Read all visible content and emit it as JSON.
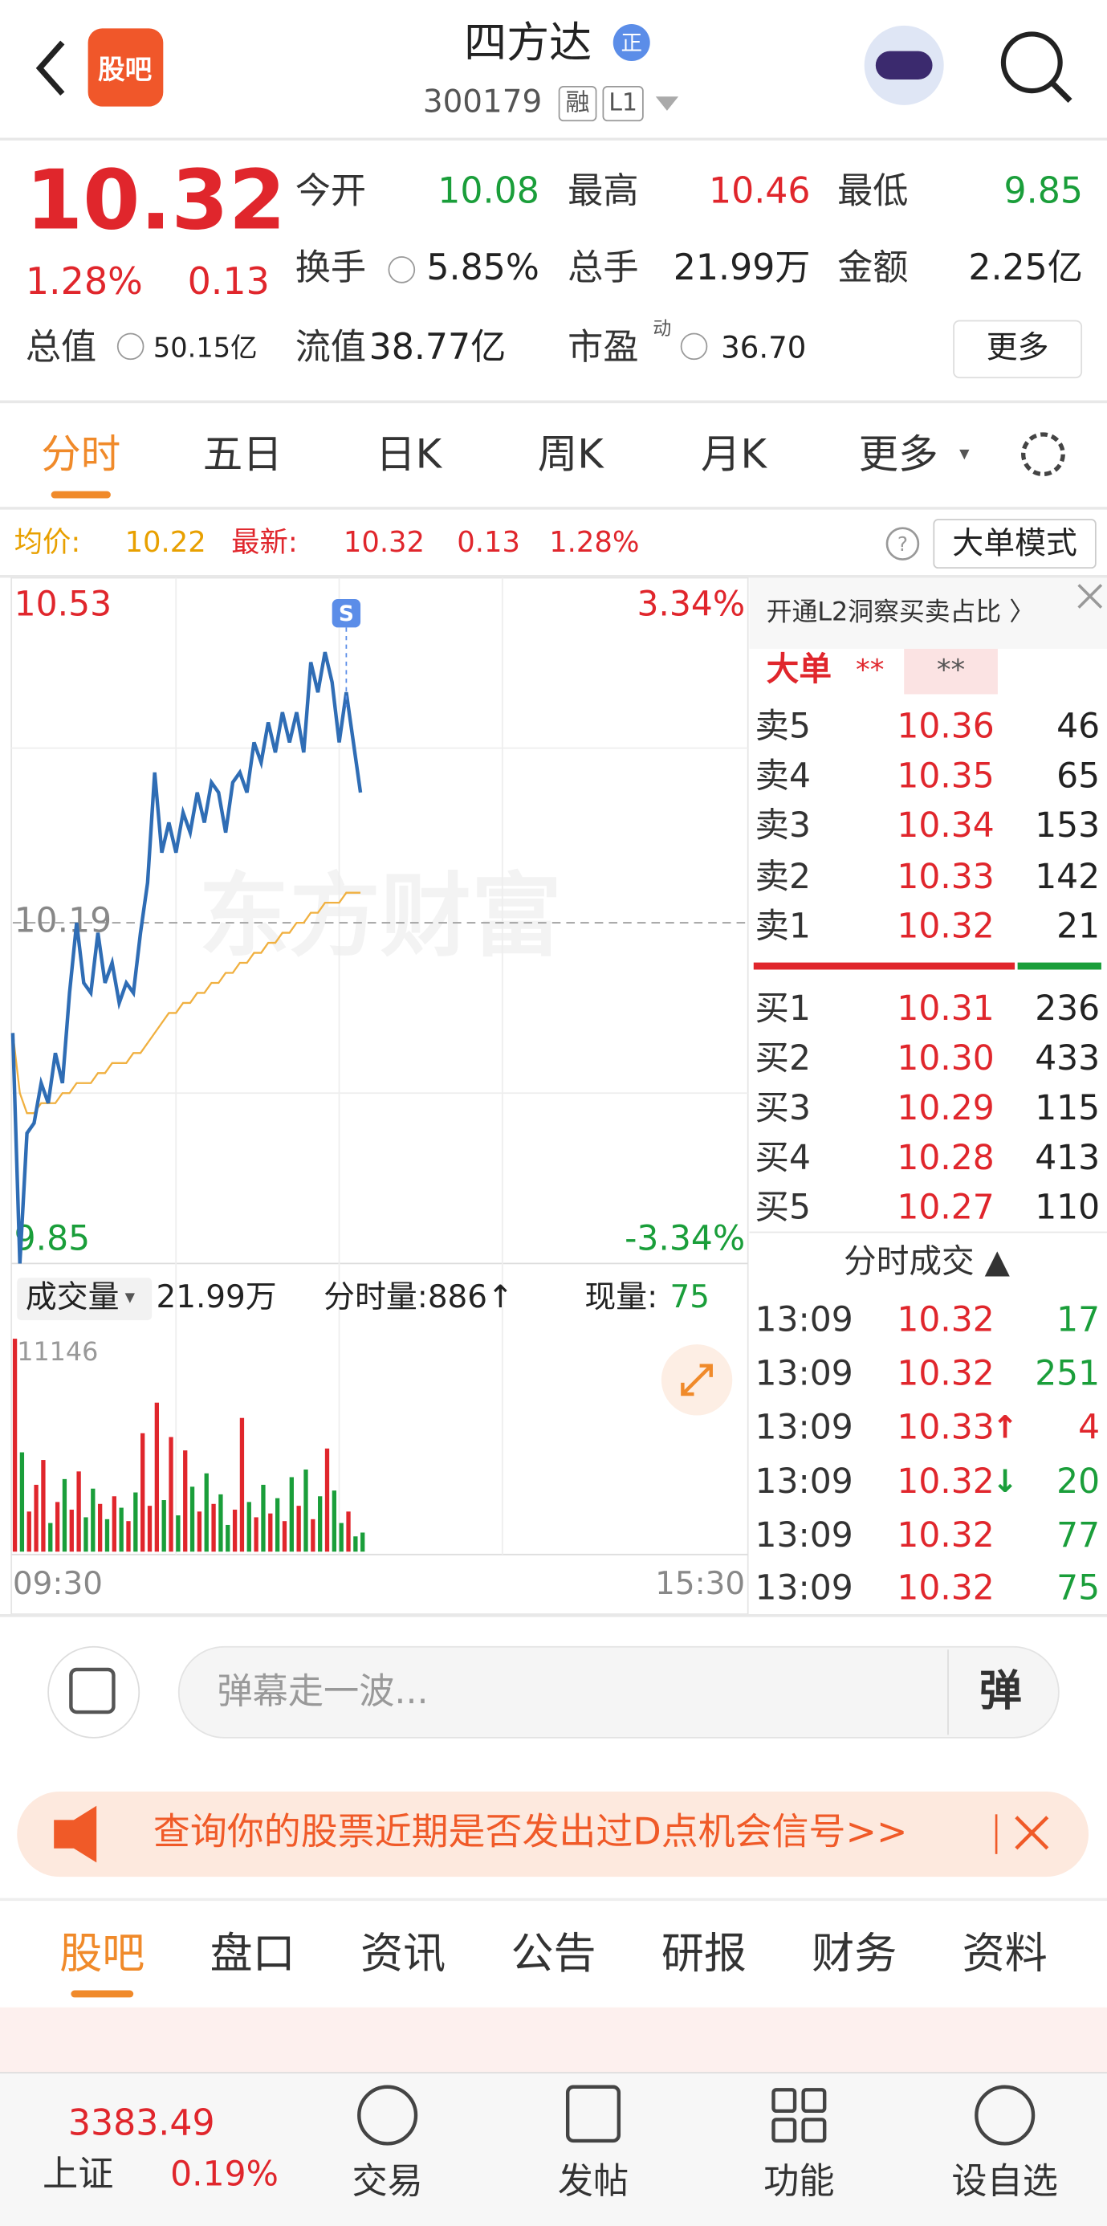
{
  "header": {
    "logo": "股吧",
    "title": "四方达",
    "badge": "正",
    "code": "300179",
    "tag_margin": "融",
    "tag_level": "L1"
  },
  "quote": {
    "price": "10.32",
    "change_pct": "1.28%",
    "change": "0.13",
    "stats": [
      {
        "label": "今开",
        "value": "10.08",
        "color": "#1a9e3a"
      },
      {
        "label": "最高",
        "value": "10.46",
        "color": "#e0262c"
      },
      {
        "label": "最低",
        "value": "9.85",
        "color": "#1a9e3a"
      },
      {
        "label": "换手",
        "value": "5.85%",
        "color": "#222222"
      },
      {
        "label": "总手",
        "value": "21.99万",
        "color": "#222222"
      },
      {
        "label": "金额",
        "value": "2.25亿",
        "color": "#222222"
      }
    ],
    "total_cap": {
      "label": "总值",
      "value": "50.15亿"
    },
    "float_cap": {
      "label": "流值",
      "value": "38.77亿"
    },
    "pe": {
      "label": "市盈",
      "sup": "动",
      "value": "36.70"
    },
    "more_button": "更多"
  },
  "tabs": [
    "分时",
    "五日",
    "日K",
    "周K",
    "月K",
    "更多"
  ],
  "info_bar": {
    "avg_label": "均价:",
    "avg": "10.22",
    "last_label": "最新:",
    "last": "10.32",
    "change": "0.13",
    "change_pct": "1.28%",
    "mode_button": "大单模式"
  },
  "chart_data": {
    "type": "line",
    "ylim": [
      9.85,
      10.53
    ],
    "yticks": [
      9.85,
      10.19,
      10.53
    ],
    "pct_labels": [
      "-3.34%",
      "3.34%"
    ],
    "x_labels": [
      "09:30",
      "15:30"
    ],
    "marker": "S",
    "watermark": "东方财富",
    "grid": true,
    "series": [
      {
        "name": "最新",
        "color": "#2f6db5",
        "values": [
          10.08,
          9.85,
          9.98,
          9.99,
          10.03,
          10.01,
          10.06,
          10.03,
          10.12,
          10.19,
          10.13,
          10.12,
          10.18,
          10.13,
          10.15,
          10.11,
          10.13,
          10.12,
          10.18,
          10.23,
          10.34,
          10.26,
          10.29,
          10.26,
          10.3,
          10.28,
          10.32,
          10.29,
          10.33,
          10.32,
          10.28,
          10.33,
          10.34,
          10.32,
          10.37,
          10.35,
          10.39,
          10.36,
          10.4,
          10.37,
          10.4,
          10.36,
          10.45,
          10.42,
          10.46,
          10.43,
          10.37,
          10.42,
          10.37,
          10.32
        ]
      },
      {
        "name": "均价",
        "color": "#f0b040",
        "values": [
          10.08,
          10.02,
          10.0,
          10.0,
          10.01,
          10.01,
          10.01,
          10.02,
          10.02,
          10.03,
          10.03,
          10.03,
          10.04,
          10.04,
          10.05,
          10.05,
          10.05,
          10.06,
          10.06,
          10.07,
          10.08,
          10.09,
          10.1,
          10.1,
          10.11,
          10.11,
          10.12,
          10.12,
          10.13,
          10.13,
          10.14,
          10.14,
          10.15,
          10.15,
          10.16,
          10.16,
          10.17,
          10.17,
          10.18,
          10.18,
          10.19,
          10.19,
          10.2,
          10.2,
          10.21,
          10.21,
          10.21,
          10.22,
          10.22,
          10.22
        ]
      }
    ],
    "volume": {
      "label": "成交量",
      "total": "21.99万",
      "period": "分时量:886↑",
      "current_label": "现量:",
      "current": "75",
      "ylim": [
        0,
        11146
      ],
      "yticks": [
        11146
      ],
      "up_color": "#e0262c",
      "down_color": "#1a9e3a",
      "values": [
        11146,
        5200,
        2100,
        3500,
        4800,
        1500,
        2600,
        3800,
        2200,
        4200,
        1800,
        3300,
        2500,
        1700,
        2900,
        2300,
        1600,
        3100,
        6200,
        2400,
        7800,
        2700,
        6000,
        1900,
        5300,
        3400,
        2100,
        4100,
        2500,
        3000,
        1400,
        2200,
        7000,
        2600,
        1800,
        3500,
        2000,
        2800,
        1600,
        3900,
        2400,
        4300,
        1700,
        2900,
        5400,
        3200,
        1500,
        2100,
        800,
        1000
      ]
    }
  },
  "order_book": {
    "promo": "开通L2洞察买卖占比 〉",
    "big_order_label": "大单",
    "big_order_a": "**",
    "big_order_b": "**",
    "asks": [
      {
        "label": "卖5",
        "price": "10.36",
        "volume": "46"
      },
      {
        "label": "卖4",
        "price": "10.35",
        "volume": "65"
      },
      {
        "label": "卖3",
        "price": "10.34",
        "volume": "153"
      },
      {
        "label": "卖2",
        "price": "10.33",
        "volume": "142"
      },
      {
        "label": "卖1",
        "price": "10.32",
        "volume": "21"
      }
    ],
    "bids": [
      {
        "label": "买1",
        "price": "10.31",
        "volume": "236"
      },
      {
        "label": "买2",
        "price": "10.30",
        "volume": "433"
      },
      {
        "label": "买3",
        "price": "10.29",
        "volume": "115"
      },
      {
        "label": "买4",
        "price": "10.28",
        "volume": "413"
      },
      {
        "label": "买5",
        "price": "10.27",
        "volume": "110"
      }
    ]
  },
  "trades": {
    "title": "分时成交 ▲",
    "rows": [
      {
        "time": "13:09",
        "price": "10.32",
        "volume": "17",
        "color": "#1a9e3a"
      },
      {
        "time": "13:09",
        "price": "10.32",
        "volume": "251",
        "color": "#1a9e3a"
      },
      {
        "time": "13:09",
        "price": "10.33",
        "dir": "↑",
        "dir_color": "#e0262c",
        "volume": "4",
        "color": "#e0262c"
      },
      {
        "time": "13:09",
        "price": "10.32",
        "dir": "↓",
        "dir_color": "#1a9e3a",
        "volume": "20",
        "color": "#1a9e3a"
      },
      {
        "time": "13:09",
        "price": "10.32",
        "volume": "77",
        "color": "#1a9e3a"
      },
      {
        "time": "13:09",
        "price": "10.32",
        "volume": "75",
        "color": "#1a9e3a"
      }
    ]
  },
  "danmaku": {
    "placeholder": "弹幕走一波...",
    "button": "弹"
  },
  "banner": "查询你的股票近期是否发出过D点机会信号>>",
  "section_tabs": [
    "股吧",
    "盘口",
    "资讯",
    "公告",
    "研报",
    "财务",
    "资料"
  ],
  "bottom_nav": {
    "index_value": "3383.49",
    "index_name": "上证",
    "index_change": "0.19%",
    "items": [
      "交易",
      "发帖",
      "功能",
      "设自选"
    ]
  }
}
